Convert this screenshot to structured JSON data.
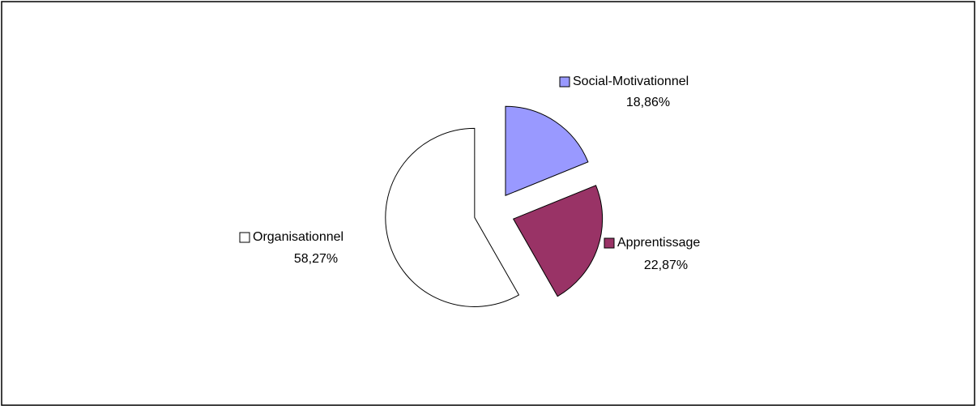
{
  "chart_data": {
    "type": "pie",
    "categories": [
      "Social-Motivationnel",
      "Apprentissage",
      "Organisationnel"
    ],
    "values": [
      18.86,
      22.87,
      58.27
    ],
    "value_labels": [
      "18,86%",
      "22,87%",
      "58,27%"
    ],
    "colors": [
      "#9999ff",
      "#993366",
      "#ffffff"
    ]
  }
}
